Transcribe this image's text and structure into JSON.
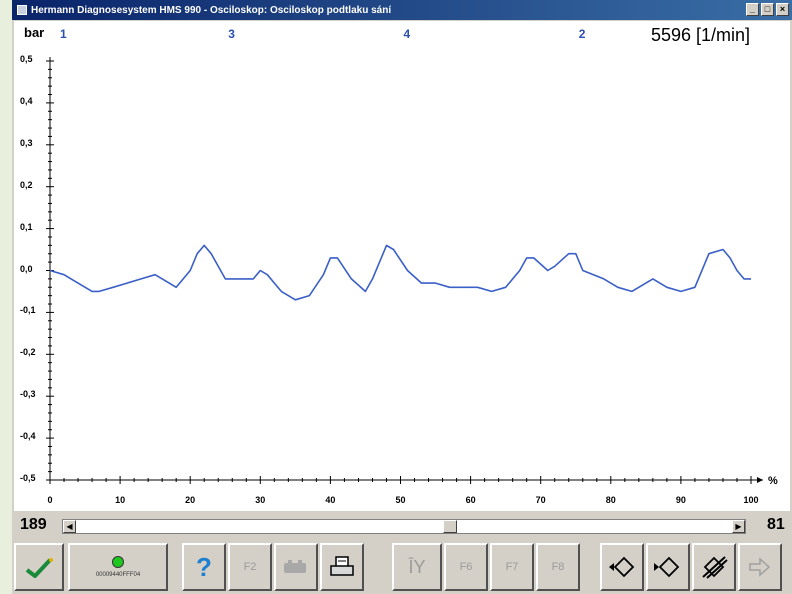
{
  "window": {
    "title": "Hermann Diagnosesystem HMS 990 - Osciloskop: Osciloskop podtlaku sání",
    "controls": [
      "_",
      "□",
      "×"
    ]
  },
  "plot": {
    "y_unit_label": "bar",
    "x_unit_label": "%",
    "rpm_readout": "5596 [1/min]",
    "y_ticks": [
      "0,5",
      "0,4",
      "0,3",
      "0,2",
      "0,1",
      "0,0",
      "-0,1",
      "-0,2",
      "-0,3",
      "-0,4",
      "-0,5"
    ],
    "x_ticks": [
      "0",
      "10",
      "20",
      "30",
      "40",
      "50",
      "60",
      "70",
      "80",
      "90",
      "100"
    ],
    "cylinder_markers": [
      {
        "label": "1",
        "x_percent": 2
      },
      {
        "label": "3",
        "x_percent": 26
      },
      {
        "label": "4",
        "x_percent": 51
      },
      {
        "label": "2",
        "x_percent": 76
      }
    ],
    "trace_color": "#3a5fc8"
  },
  "chart_data": {
    "type": "line",
    "xlabel": "%",
    "ylabel": "bar",
    "xlim": [
      0,
      100
    ],
    "ylim": [
      -0.5,
      0.5
    ],
    "x": [
      0,
      2,
      4,
      6,
      7,
      9,
      11,
      13,
      15,
      17,
      18,
      20,
      21,
      22,
      23,
      25,
      27,
      29,
      30,
      31,
      33,
      35,
      37,
      39,
      40,
      41,
      43,
      45,
      46,
      48,
      49,
      51,
      53,
      55,
      57,
      59,
      61,
      63,
      65,
      67,
      68,
      69,
      71,
      72,
      74,
      75,
      76,
      79,
      81,
      83,
      85,
      86,
      88,
      90,
      92,
      94,
      96,
      97,
      98,
      99,
      100
    ],
    "y": [
      0.0,
      -0.01,
      -0.03,
      -0.05,
      -0.05,
      -0.04,
      -0.03,
      -0.02,
      -0.01,
      -0.03,
      -0.04,
      0.0,
      0.04,
      0.06,
      0.04,
      -0.02,
      -0.02,
      -0.02,
      0.0,
      -0.01,
      -0.05,
      -0.07,
      -0.06,
      -0.01,
      0.03,
      0.03,
      -0.02,
      -0.05,
      -0.02,
      0.06,
      0.05,
      0.0,
      -0.03,
      -0.03,
      -0.04,
      -0.04,
      -0.04,
      -0.05,
      -0.04,
      0.0,
      0.03,
      0.03,
      0.0,
      0.01,
      0.04,
      0.04,
      0.0,
      -0.02,
      -0.04,
      -0.05,
      -0.03,
      -0.02,
      -0.04,
      -0.05,
      -0.04,
      0.04,
      0.05,
      0.03,
      0.0,
      -0.02,
      -0.02
    ],
    "series": [
      {
        "values_ref": "y"
      }
    ]
  },
  "scroll": {
    "left_value": "189",
    "right_value": "81",
    "position_percent": 57
  },
  "toolbar": {
    "status_id": "00009440FFF04",
    "help_label": "?",
    "f2_label": "F2",
    "f5_label": "ĪY",
    "f6_label": "F6",
    "f7_label": "F7",
    "f8_label": "F8"
  }
}
